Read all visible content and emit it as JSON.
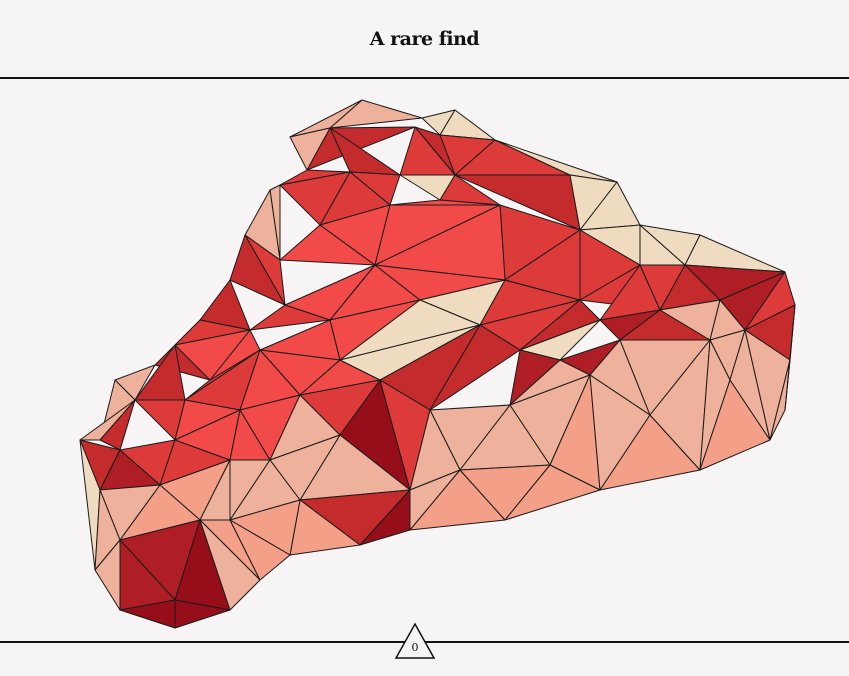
{
  "header": {
    "title": "A rare find"
  },
  "counter": {
    "value": "0",
    "icon": "triangle-icon"
  },
  "palette": {
    "background": "#f6f4f5",
    "fat": "#efdcc0",
    "pale": "#f0a58f",
    "light": "#eeb19b",
    "medium": "#f4a088",
    "red": "#f24a48",
    "deep": "#dd3a3a",
    "dark": "#c42b2d",
    "darker": "#b01e25",
    "darkest": "#950e1a",
    "outline": "#1a1a1a"
  }
}
